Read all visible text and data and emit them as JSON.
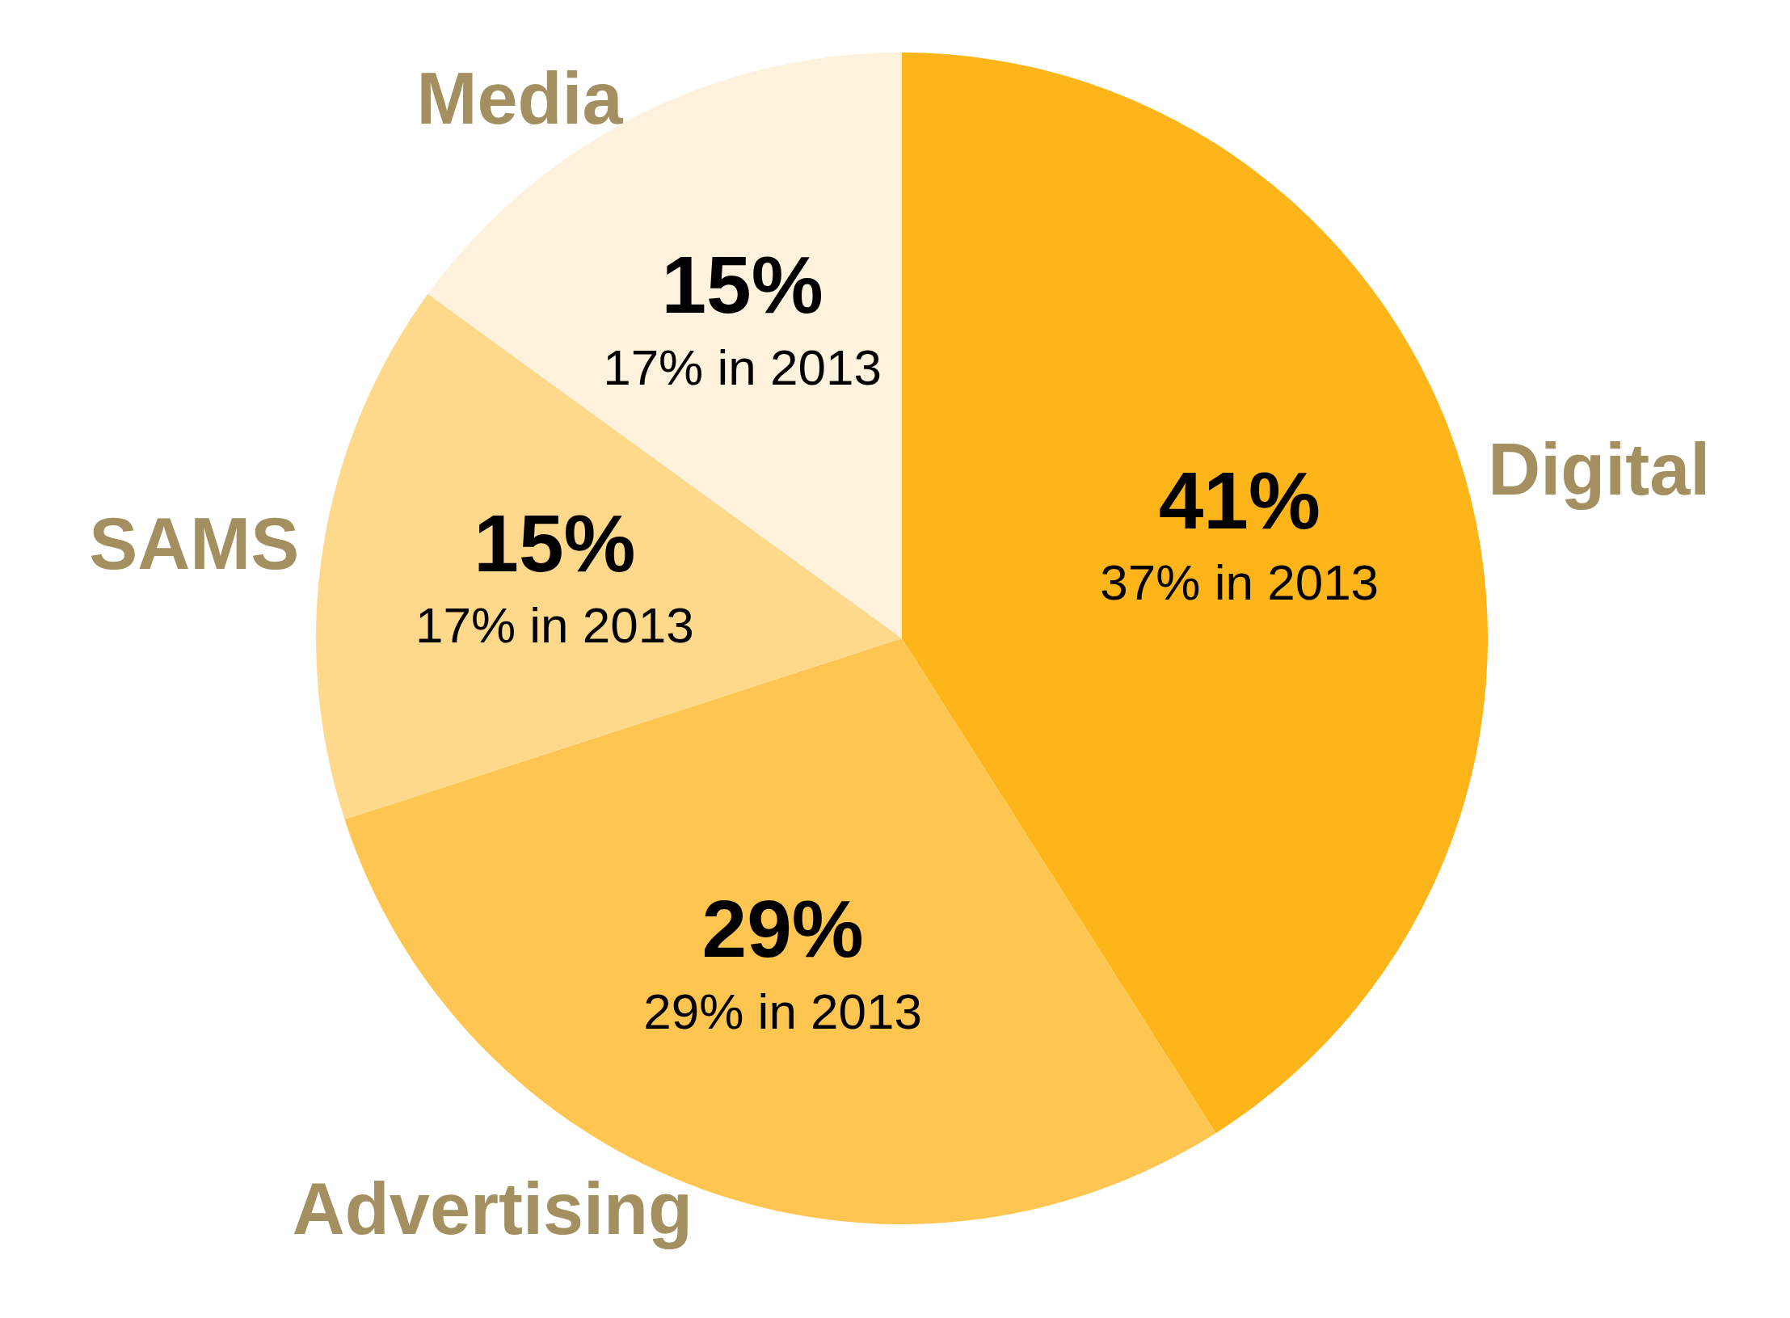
{
  "chart_data": {
    "type": "pie",
    "categories": [
      "Digital",
      "Advertising",
      "SAMS",
      "Media"
    ],
    "values": [
      41,
      29,
      15,
      15
    ],
    "colors": [
      "#fdb51a",
      "#fec650",
      "#fed98c",
      "#fef2dc"
    ],
    "value_labels": [
      "41%\n37% in 2013",
      "29%\n29% in 2013",
      "15%\n17% in 2013",
      "15%\n17% in 2013"
    ],
    "legend": false
  }
}
